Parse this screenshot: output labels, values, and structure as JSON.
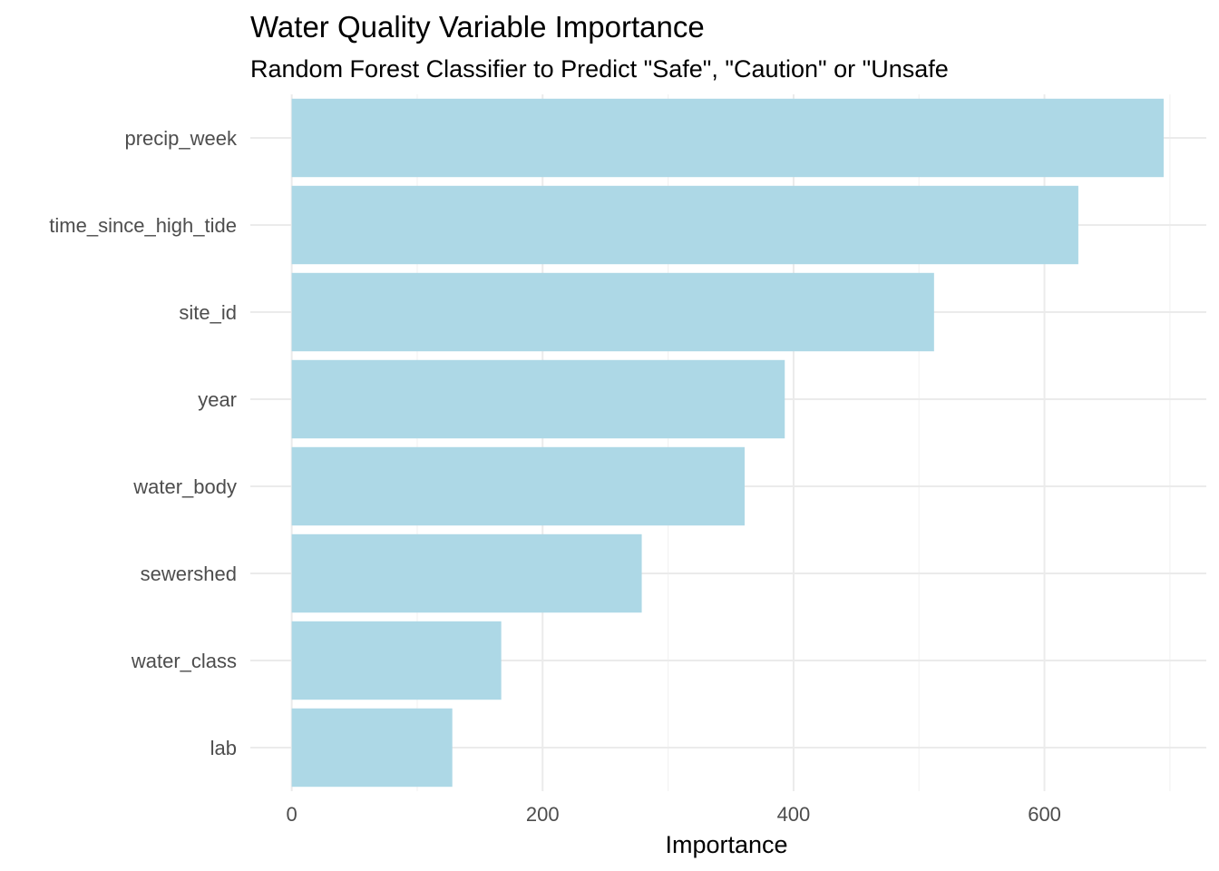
{
  "chart_data": {
    "type": "bar",
    "orientation": "horizontal",
    "title": "Water Quality Variable Importance",
    "subtitle": "Random Forest Classifier to Predict \"Safe\", \"Caution\" or \"Unsafe",
    "xlabel": "Importance",
    "ylabel": "",
    "categories": [
      "precip_week",
      "time_since_high_tide",
      "site_id",
      "year",
      "water_body",
      "sewershed",
      "water_class",
      "lab"
    ],
    "values": [
      695,
      627,
      512,
      393,
      361,
      279,
      167,
      128
    ],
    "xlim": [
      -33,
      729
    ],
    "xticks": [
      0,
      200,
      400,
      600
    ],
    "xtick_labels": [
      "0",
      "200",
      "400",
      "600"
    ],
    "grid": true,
    "bar_color": "#add8e6"
  }
}
